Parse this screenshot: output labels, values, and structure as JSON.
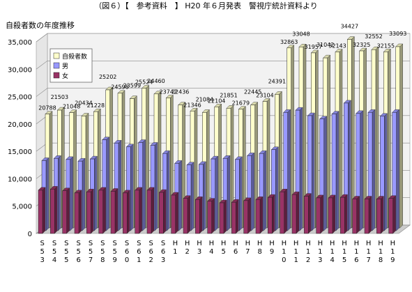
{
  "header": {
    "caption": "（図６）【　参考資料　】 H20 年６月発表　警視庁統計資料より",
    "subtitle": "自殺者数の年度推移"
  },
  "chart_data": {
    "type": "bar",
    "title": "自殺者数の年度推移",
    "ylim": [
      0,
      35000
    ],
    "yticks": [
      "0",
      "5,000",
      "10,000",
      "15,000",
      "20,000",
      "25,000",
      "30,000",
      "35,000"
    ],
    "grid": true,
    "legend_position": "top-left",
    "categories": [
      "S53",
      "S54",
      "S55",
      "S56",
      "S57",
      "S58",
      "S59",
      "S60",
      "S61",
      "S62",
      "S63",
      "H1",
      "H2",
      "H3",
      "H4",
      "H5",
      "H6",
      "H7",
      "H8",
      "H9",
      "H10",
      "H11",
      "H12",
      "H13",
      "H14",
      "H15",
      "H16",
      "H17",
      "H18",
      "H19"
    ],
    "category_labels": [
      [
        "S",
        "5",
        "3"
      ],
      [
        "S",
        "5",
        "4"
      ],
      [
        "S",
        "5",
        "5"
      ],
      [
        "S",
        "5",
        "6"
      ],
      [
        "S",
        "5",
        "7"
      ],
      [
        "S",
        "5",
        "8"
      ],
      [
        "S",
        "5",
        "9"
      ],
      [
        "S",
        "6",
        "0"
      ],
      [
        "S",
        "6",
        "1"
      ],
      [
        "S",
        "6",
        "2"
      ],
      [
        "S",
        "6",
        "3"
      ],
      [
        "H",
        "1"
      ],
      [
        "H",
        "2"
      ],
      [
        "H",
        "3"
      ],
      [
        "H",
        "4"
      ],
      [
        "H",
        "5"
      ],
      [
        "H",
        "6"
      ],
      [
        "H",
        "7"
      ],
      [
        "H",
        "8"
      ],
      [
        "H",
        "9"
      ],
      [
        "H",
        "1",
        "0"
      ],
      [
        "H",
        "1",
        "1"
      ],
      [
        "H",
        "1",
        "2"
      ],
      [
        "H",
        "1",
        "3"
      ],
      [
        "H",
        "1",
        "4"
      ],
      [
        "H",
        "1",
        "5"
      ],
      [
        "H",
        "1",
        "6"
      ],
      [
        "H",
        "1",
        "7"
      ],
      [
        "H",
        "1",
        "8"
      ],
      [
        "H",
        "1",
        "9"
      ]
    ],
    "series": [
      {
        "name": "自殺者数",
        "color": "#ffffcc",
        "values": [
          20788,
          21503,
          21048,
          20434,
          21228,
          25202,
          24596,
          23599,
          25524,
          24460,
          23742,
          22436,
          21346,
          21084,
          22104,
          21851,
          21679,
          22445,
          23104,
          24391,
          32863,
          33048,
          31957,
          31042,
          32143,
          34427,
          32325,
          32552,
          32155,
          33093
        ]
      },
      {
        "name": "男",
        "color": "#9999ff",
        "values": [
          12800,
          13200,
          13000,
          12700,
          13100,
          16600,
          16000,
          15300,
          16100,
          15600,
          14100,
          12300,
          12000,
          12100,
          13100,
          13200,
          13000,
          13700,
          14100,
          14800,
          21600,
          22000,
          21000,
          20400,
          21300,
          23300,
          21400,
          21600,
          20900,
          21600
        ]
      },
      {
        "name": "女",
        "color": "#993366",
        "values": [
          7900,
          8100,
          7800,
          7400,
          7600,
          7900,
          7700,
          7400,
          7900,
          7900,
          7500,
          7000,
          6400,
          6200,
          5900,
          5600,
          5700,
          6000,
          6200,
          6600,
          7600,
          7100,
          6800,
          6500,
          6500,
          6600,
          6300,
          6300,
          6300,
          6400
        ]
      }
    ],
    "data_labels": {
      "series": "自殺者数",
      "values": [
        "20788",
        "21503",
        "21048",
        "20434",
        "21228",
        "25202",
        "24596",
        "23599",
        "25524",
        "24460",
        "23742",
        "22436",
        "21346",
        "21084",
        "22104",
        "21851",
        "21679",
        "22445",
        "23104",
        "24391",
        "32863",
        "33048",
        "31957",
        "31042",
        "32143",
        "34427",
        "32325",
        "32552",
        "32155",
        "33093"
      ]
    }
  }
}
